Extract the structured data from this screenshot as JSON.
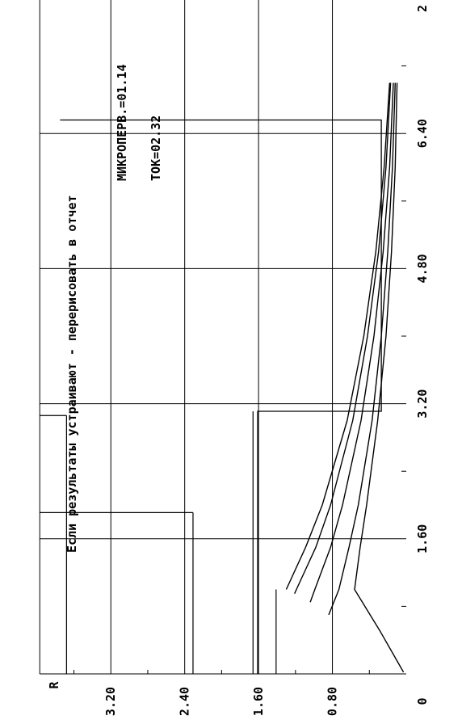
{
  "chart_data": {
    "type": "line",
    "orientation": "rotated-90-ccw",
    "ylabel": "R",
    "x_ticks": [
      "0",
      "1.60",
      "3.20",
      "4.80",
      "6.40",
      "2"
    ],
    "y_ticks": [
      "0.80",
      "1.60",
      "2.40",
      "3.20"
    ],
    "xlim": [
      0,
      8.0
    ],
    "ylim": [
      0,
      4.0
    ],
    "grid": true,
    "annotations": {
      "message": "Если результаты устраивают - перерисовать в отчет",
      "micro": "МИКРОПЕРВ.=01.14",
      "tok": "ТОК=02.32"
    },
    "series": [
      {
        "x": [
          0.02,
          0.5,
          1.0,
          1.5,
          2.0,
          3.0,
          4.0,
          5.0,
          6.0,
          7.0
        ],
        "y": [
          0.03,
          0.28,
          0.56,
          0.5,
          0.43,
          0.31,
          0.22,
          0.16,
          0.12,
          0.1
        ]
      },
      {
        "x": [
          0.7,
          1.0,
          1.5,
          2.0,
          3.0,
          4.0,
          5.0,
          6.0,
          7.0
        ],
        "y": [
          0.84,
          0.73,
          0.62,
          0.52,
          0.37,
          0.27,
          0.2,
          0.15,
          0.12
        ]
      },
      {
        "x": [
          0.85,
          1.0,
          1.5,
          2.0,
          3.0,
          4.0,
          5.0,
          6.0,
          7.0
        ],
        "y": [
          1.04,
          0.99,
          0.82,
          0.69,
          0.49,
          0.35,
          0.25,
          0.18,
          0.14
        ]
      },
      {
        "x": [
          0.95,
          1.0,
          1.5,
          2.0,
          3.0,
          4.0,
          5.0,
          6.0,
          7.0
        ],
        "y": [
          1.21,
          1.19,
          0.98,
          0.82,
          0.58,
          0.42,
          0.3,
          0.22,
          0.17
        ]
      },
      {
        "x": [
          1.0,
          1.5,
          2.0,
          3.0,
          4.0,
          5.0,
          6.0,
          7.0
        ],
        "y": [
          1.3,
          1.09,
          0.91,
          0.64,
          0.46,
          0.33,
          0.24,
          0.18
        ]
      }
    ],
    "limit_line": {
      "x": [
        0,
        3.11,
        3.11,
        6.56,
        6.56
      ],
      "y": [
        1.61,
        1.61,
        0.27,
        0.27,
        3.75
      ]
    },
    "hlines": [
      {
        "y": 1.41,
        "x": [
          0,
          1.0
        ]
      },
      {
        "y": 1.66,
        "x": [
          0,
          3.11
        ]
      },
      {
        "y": 2.31,
        "x": [
          0,
          1.91
        ]
      },
      {
        "y": 3.68,
        "x": [
          0,
          3.06
        ]
      }
    ]
  }
}
